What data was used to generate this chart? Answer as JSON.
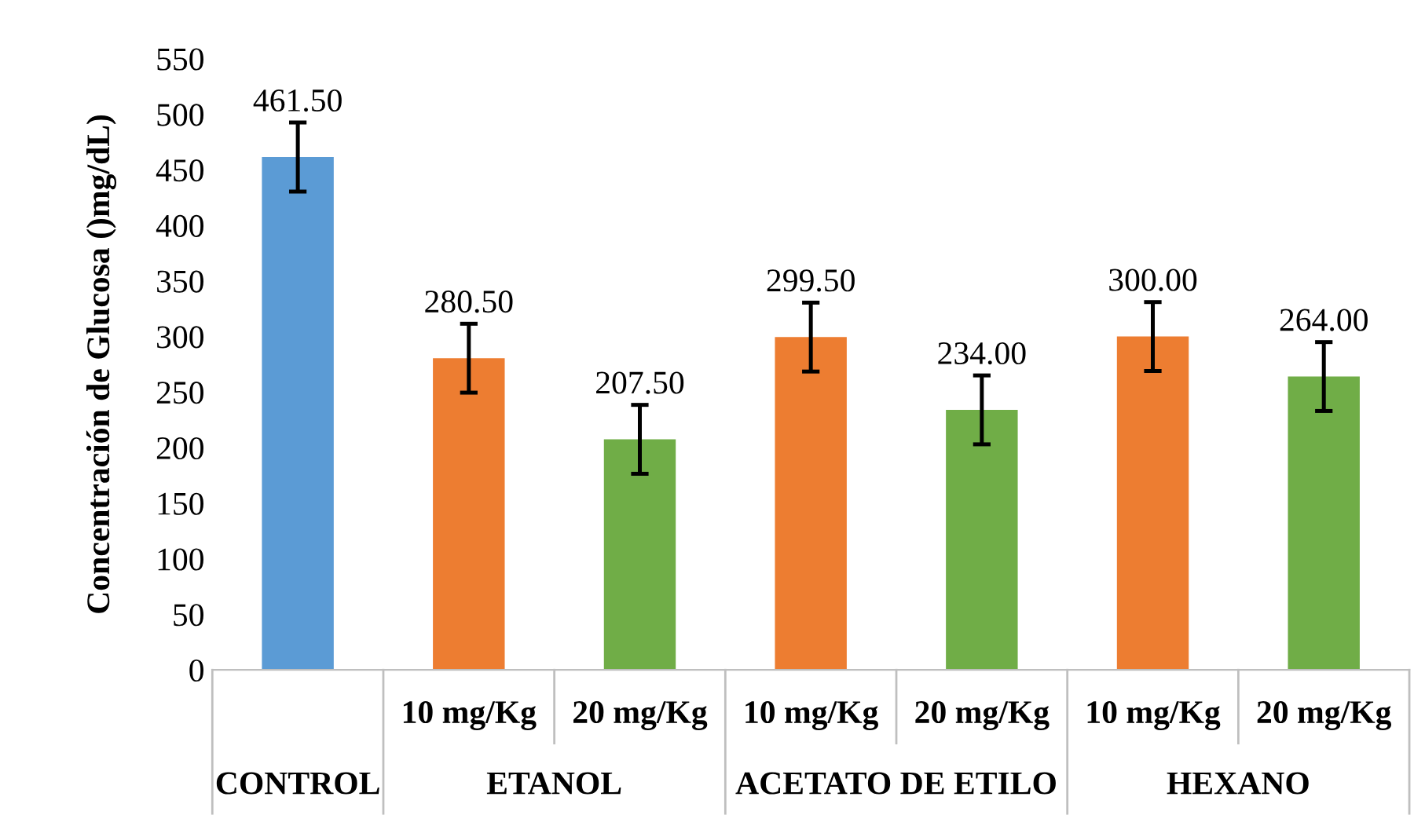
{
  "chart_data": {
    "type": "bar",
    "categories": [
      null,
      "10 mg/Kg",
      "20 mg/Kg",
      "10 mg/Kg",
      "20 mg/Kg",
      "10 mg/Kg",
      "20 mg/Kg"
    ],
    "values": [
      461.5,
      280.5,
      207.5,
      299.5,
      234.0,
      300.0,
      264.0
    ],
    "colors": [
      "#5b9bd5",
      "#ed7d31",
      "#70ad47",
      "#ed7d31",
      "#70ad47",
      "#ed7d31",
      "#70ad47"
    ],
    "errors": [
      31,
      31,
      31,
      31,
      31,
      31,
      31
    ],
    "value_labels": [
      "461.50",
      "280.50",
      "207.50",
      "299.50",
      "234.00",
      "300.00",
      "264.00"
    ],
    "ylabel": "Concentración de Glucosa ()mg/dL)",
    "ylim": [
      0,
      550
    ],
    "yticks": [
      0,
      50,
      100,
      150,
      200,
      250,
      300,
      350,
      400,
      450,
      500,
      550
    ],
    "annotations": [
      "CONTROL",
      "ETANOL",
      "ACETATO DE ETILO",
      "HEXANO"
    ],
    "grid": false
  }
}
